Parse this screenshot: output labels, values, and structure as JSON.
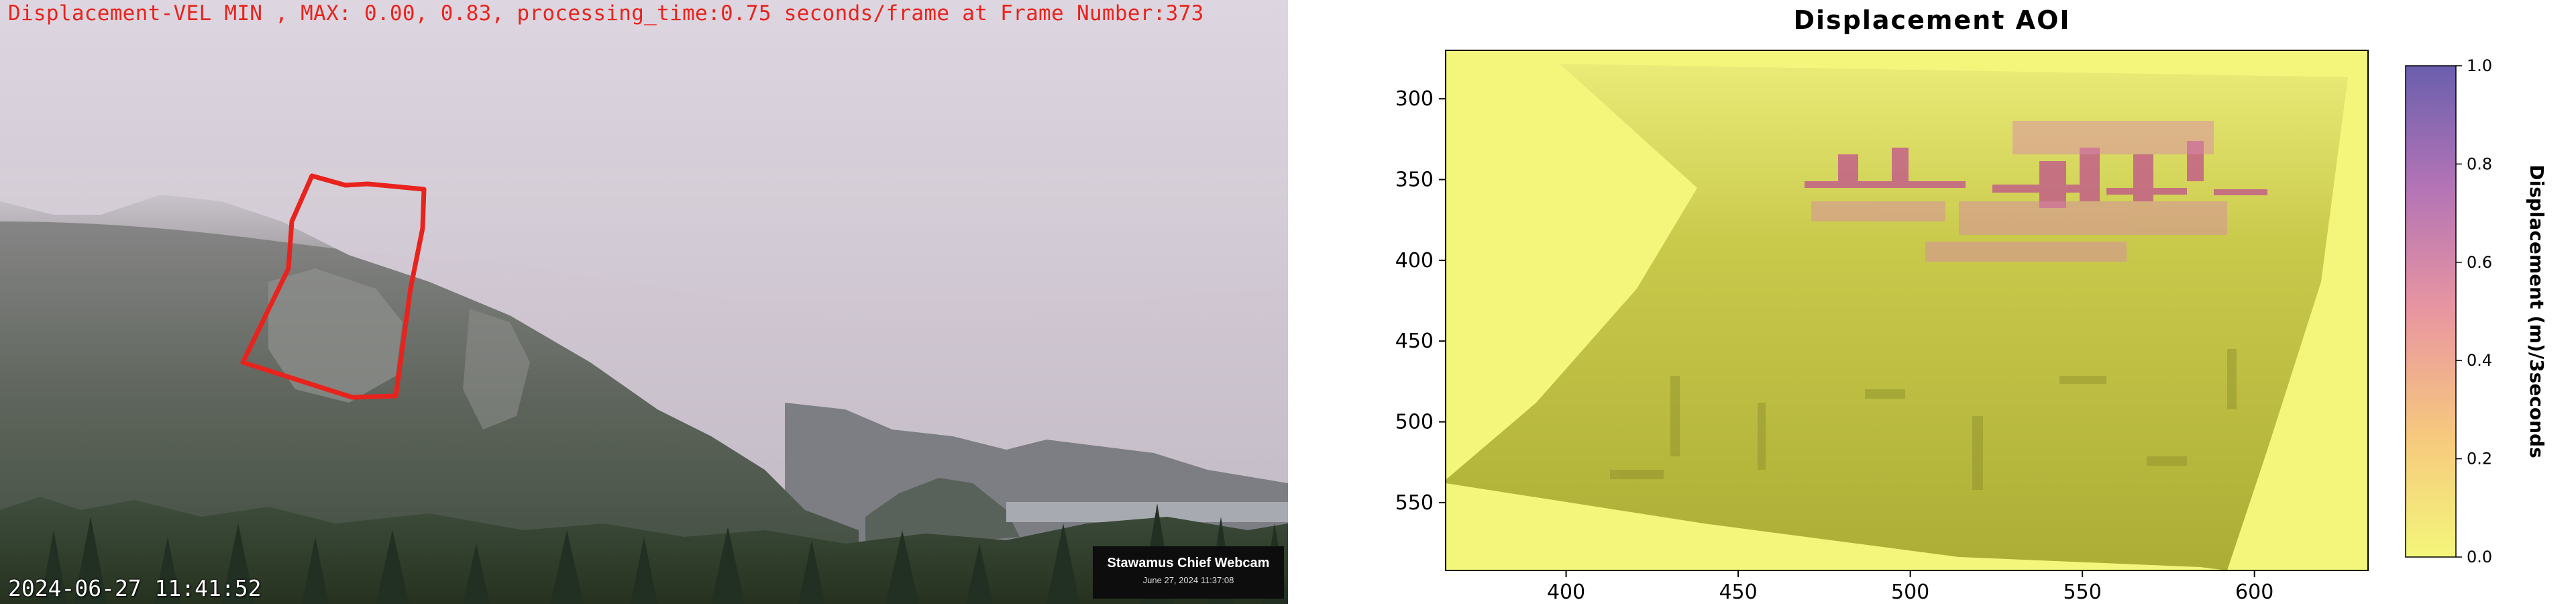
{
  "webcam": {
    "overlay_title": "Displacement-VEL MIN , MAX: 0.00, 0.83, processing_time:0.75 seconds/frame at Frame Number:373",
    "timestamp": "2024-06-27 11:41:52",
    "camera_name": "Stawamus Chief Webcam",
    "camera_date": "June 27, 2024 11:37:08"
  },
  "colors": {
    "overlay_text": "#e8231d",
    "roi_outline": "#e8231d",
    "map_low": "#f5f77a",
    "map_terrain": "#b4b43c",
    "map_high": "#6a5fae"
  },
  "chart_data": {
    "type": "heatmap",
    "title": "Displacement AOI",
    "xlabel": "",
    "ylabel": "",
    "xlim": [
      365,
      633
    ],
    "ylim": [
      592,
      270
    ],
    "xticks": [
      400,
      450,
      500,
      550,
      600
    ],
    "yticks": [
      300,
      350,
      400,
      450,
      500,
      550
    ],
    "colorbar": {
      "label": "Displacement (m)/3seconds",
      "range": [
        0.0,
        1.0
      ],
      "ticks": [
        0.0,
        0.2,
        0.4,
        0.6,
        0.8,
        1.0
      ],
      "colormap": "plasma_r"
    }
  }
}
